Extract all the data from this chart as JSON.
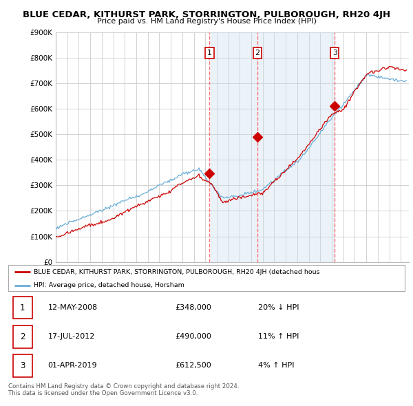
{
  "title": "BLUE CEDAR, KITHURST PARK, STORRINGTON, PULBOROUGH, RH20 4JH",
  "subtitle": "Price paid vs. HM Land Registry's House Price Index (HPI)",
  "ylabel_ticks": [
    "£0",
    "£100K",
    "£200K",
    "£300K",
    "£400K",
    "£500K",
    "£600K",
    "£700K",
    "£800K",
    "£900K"
  ],
  "ytick_values": [
    0,
    100000,
    200000,
    300000,
    400000,
    500000,
    600000,
    700000,
    800000,
    900000
  ],
  "ylim": [
    0,
    900000
  ],
  "xlim_start": 1995.0,
  "xlim_end": 2025.7,
  "hpi_color": "#6aaed6",
  "hpi_fill_color": "#c8dff0",
  "price_color": "#CC0000",
  "trans_dates": [
    2008.37,
    2012.54,
    2019.25
  ],
  "trans_prices": [
    348000,
    490000,
    612500
  ],
  "trans_labels": [
    "1",
    "2",
    "3"
  ],
  "vline_color": "#FF6666",
  "shade_between_x1": 2008.37,
  "shade_between_x2": 2019.25,
  "legend_red_label": "BLUE CEDAR, KITHURST PARK, STORRINGTON, PULBOROUGH, RH20 4JH (detached hous",
  "legend_blue_label": "HPI: Average price, detached house, Horsham",
  "table_rows": [
    {
      "num": "1",
      "date": "12-MAY-2008",
      "price": "£348,000",
      "hpi": "20% ↓ HPI"
    },
    {
      "num": "2",
      "date": "17-JUL-2012",
      "price": "£490,000",
      "hpi": "11% ↑ HPI"
    },
    {
      "num": "3",
      "date": "01-APR-2019",
      "price": "£612,500",
      "hpi": "4% ↑ HPI"
    }
  ],
  "footer": "Contains HM Land Registry data © Crown copyright and database right 2024.\nThis data is licensed under the Open Government Licence v3.0.",
  "background_color": "#FFFFFF",
  "grid_color": "#CCCCCC"
}
